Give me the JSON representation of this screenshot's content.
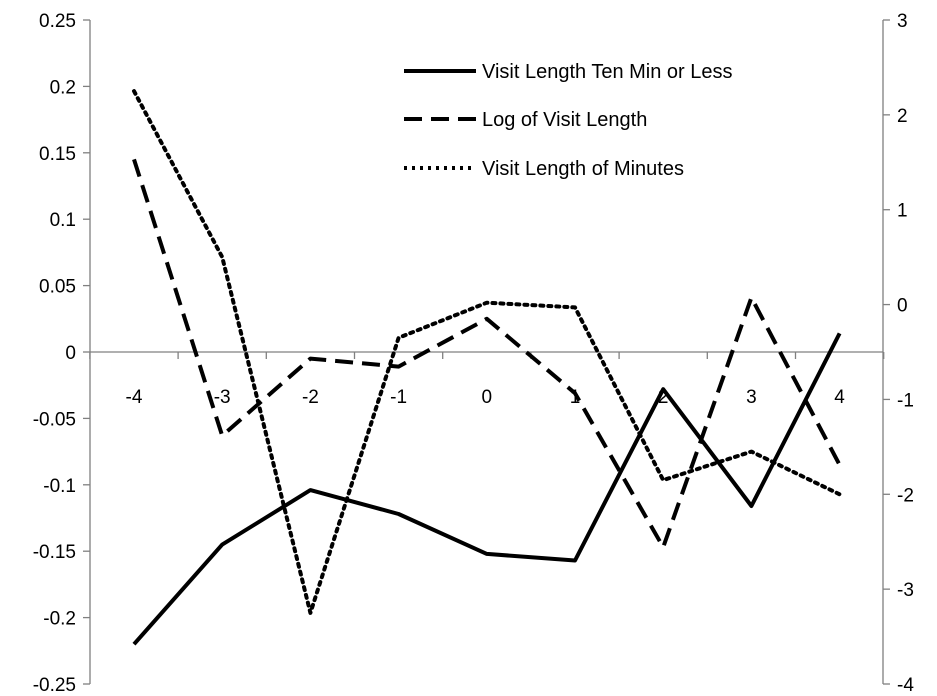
{
  "chart_data": {
    "type": "line",
    "x": [
      -4,
      -3,
      -2,
      -1,
      0,
      1,
      2,
      3,
      4
    ],
    "x_tick_labels": [
      "-4",
      "-3",
      "-2",
      "-1",
      "0",
      "1",
      "2",
      "3",
      "4"
    ],
    "left_ylim": [
      -0.25,
      0.25
    ],
    "left_y_tick_labels": [
      "0.25",
      "0.2",
      "0.15",
      "0.1",
      "0.05",
      "0",
      "-0.05",
      "-0.1",
      "-0.15",
      "-0.2",
      "-0.25"
    ],
    "right_ylim": [
      -4,
      3
    ],
    "right_y_tick_labels": [
      "3",
      "2",
      "1",
      "0",
      "-1",
      "-2",
      "-3",
      "-4"
    ],
    "series": [
      {
        "name": "Visit Length Ten Min or Less",
        "axis": "left",
        "style": "solid",
        "color": "#000000",
        "values": [
          -0.22,
          -0.145,
          -0.104,
          -0.122,
          -0.152,
          -0.157,
          -0.028,
          -0.116,
          0.014
        ]
      },
      {
        "name": "Log of Visit Length",
        "axis": "left",
        "style": "dashed",
        "color": "#000000",
        "values": [
          0.145,
          -0.063,
          -0.005,
          -0.011,
          0.025,
          -0.031,
          -0.147,
          0.041,
          -0.085
        ]
      },
      {
        "name": "Visit Length of Minutes",
        "axis": "right",
        "style": "dotted",
        "color": "#000000",
        "values": [
          2.25,
          0.5,
          -3.25,
          -0.35,
          0.02,
          -0.03,
          -1.85,
          -1.55,
          -2.0
        ]
      }
    ],
    "legend_position": "top-right",
    "grid": false
  }
}
